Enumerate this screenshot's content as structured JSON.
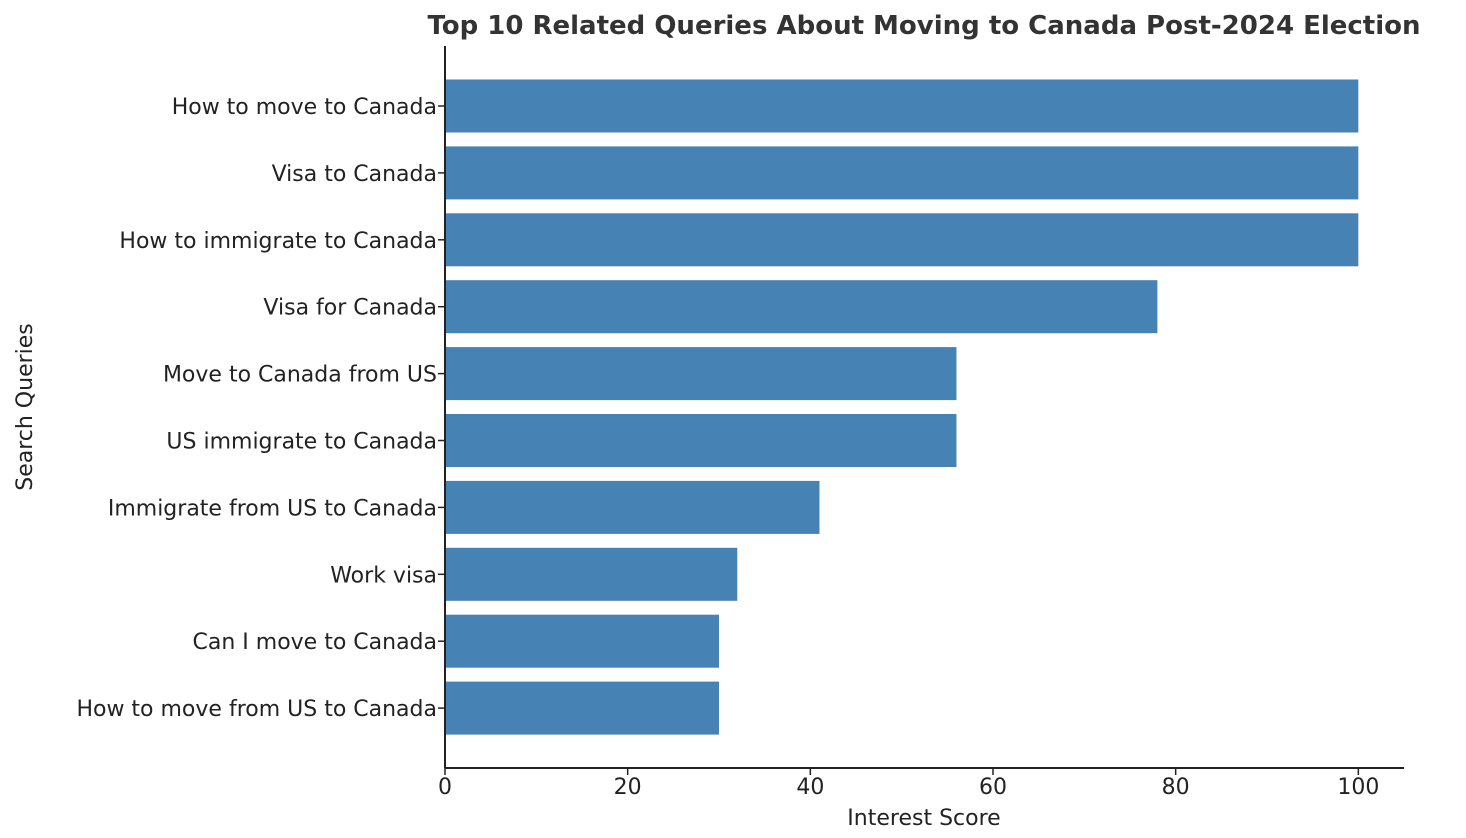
{
  "chart_data": {
    "type": "bar",
    "orientation": "horizontal",
    "title": "Top 10 Related Queries About Moving to Canada Post-2024 Election",
    "xlabel": "Interest Score",
    "ylabel": "Search Queries",
    "categories": [
      "How to move to Canada",
      "Visa to Canada",
      "How to immigrate to Canada",
      "Visa for Canada",
      "Move to Canada from US",
      "US immigrate to Canada",
      "Immigrate from US to Canada",
      "Work visa",
      "Can I move to Canada",
      "How to move from US to Canada"
    ],
    "values": [
      100,
      100,
      100,
      78,
      56,
      56,
      41,
      32,
      30,
      30
    ],
    "xlim": [
      0,
      105
    ],
    "xticks": [
      0,
      20,
      40,
      60,
      80,
      100
    ],
    "grid": false,
    "bar_color": "#4682b4"
  }
}
